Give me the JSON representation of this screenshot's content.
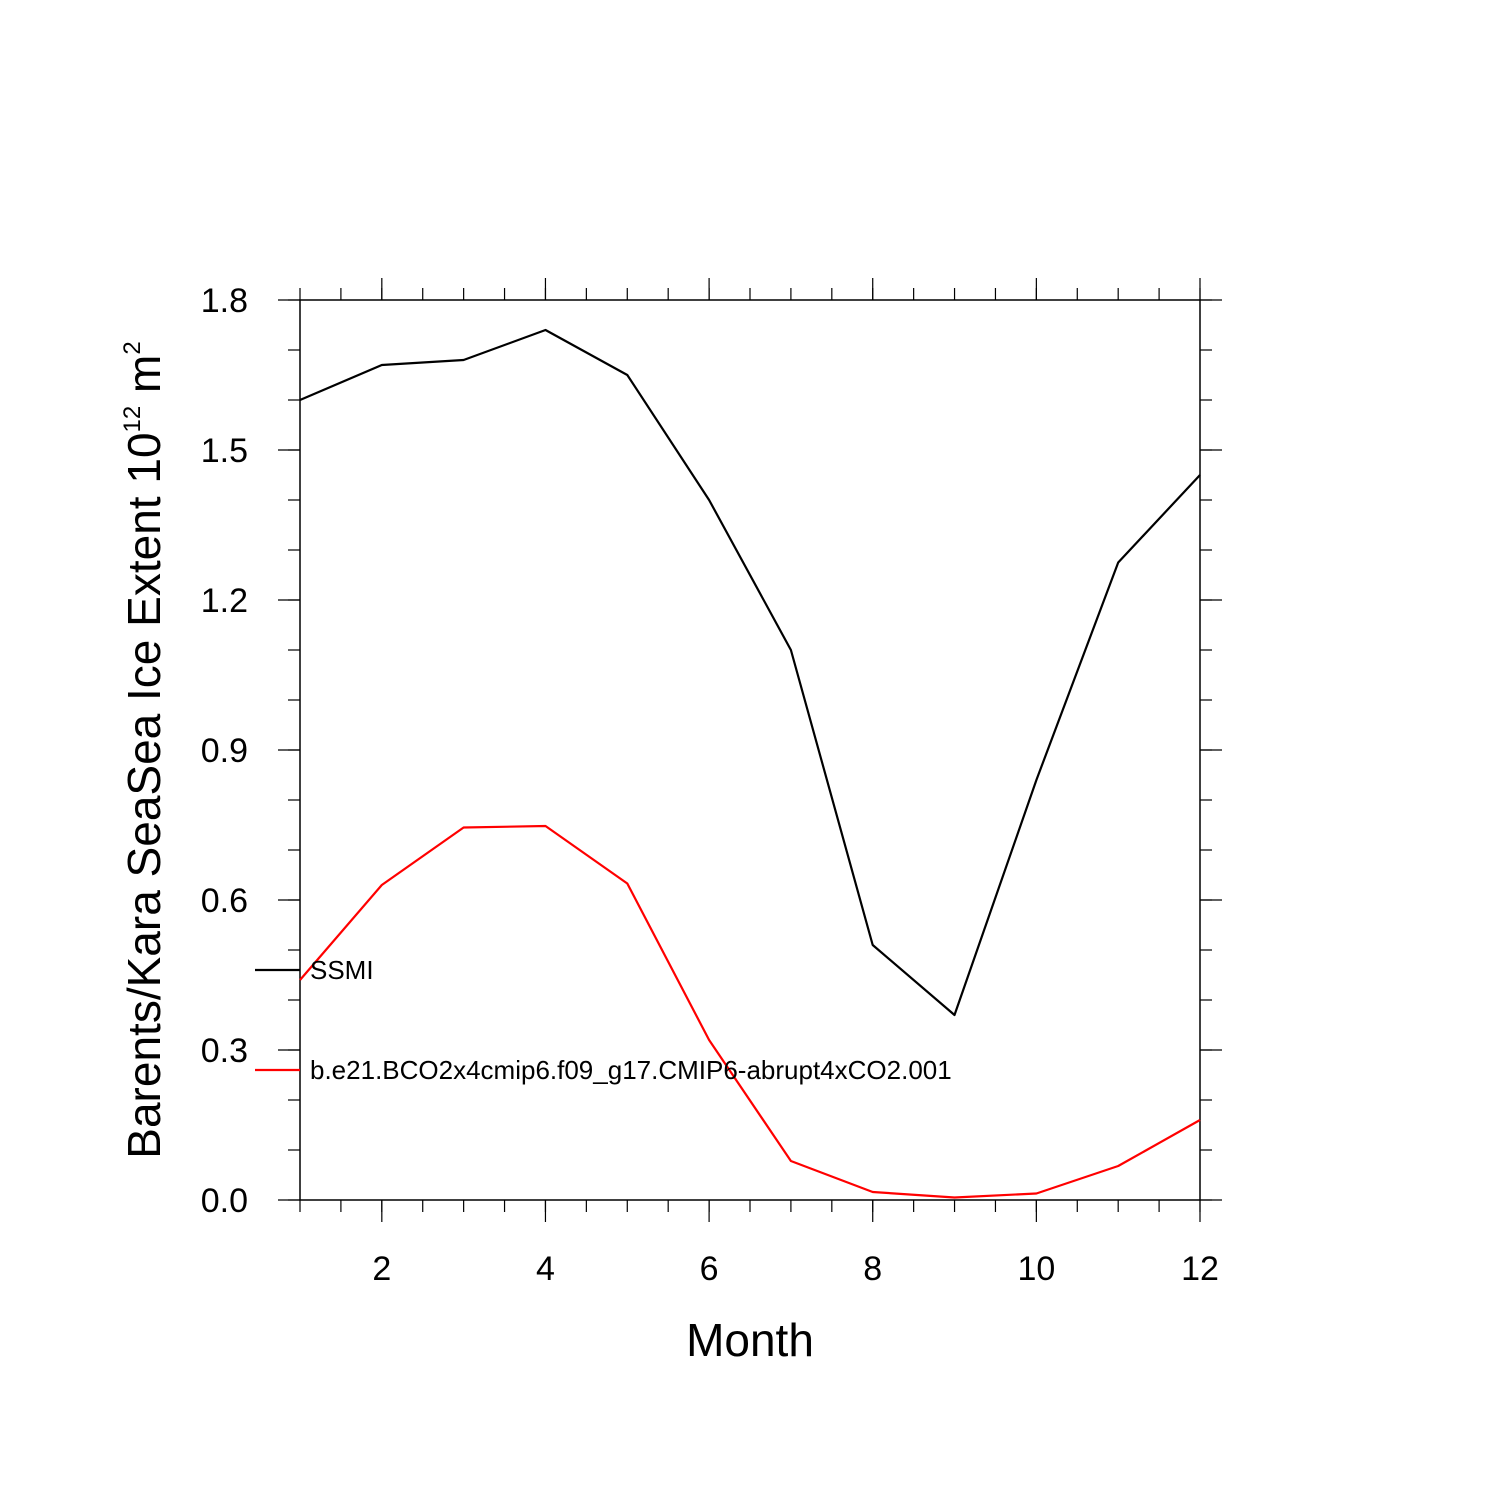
{
  "chart_data": {
    "type": "line",
    "xlabel": "Month",
    "ylabel_main": "Barents/Kara SeaSea Ice Extent 10",
    "ylabel_sup1": "12",
    "ylabel_unit": " m",
    "ylabel_sup2": "2",
    "xlim": [
      1,
      12
    ],
    "ylim": [
      0.0,
      1.8
    ],
    "x_ticks": [
      2,
      4,
      6,
      8,
      10,
      12
    ],
    "x_tick_labels": [
      "2",
      "4",
      "6",
      "8",
      "10",
      "12"
    ],
    "y_ticks": [
      0.0,
      0.3,
      0.6,
      0.9,
      1.2,
      1.5,
      1.8
    ],
    "y_tick_labels": [
      "0.0",
      "0.3",
      "0.6",
      "0.9",
      "1.2",
      "1.5",
      "1.8"
    ],
    "x": [
      1,
      2,
      3,
      4,
      5,
      6,
      7,
      8,
      9,
      10,
      11,
      12
    ],
    "series": [
      {
        "name": "SSMI",
        "color": "#000000",
        "values": [
          1.6,
          1.67,
          1.68,
          1.74,
          1.65,
          1.4,
          1.1,
          0.51,
          0.37,
          0.84,
          1.275,
          1.45
        ]
      },
      {
        "name": "b.e21.BCO2x4cmip6.f09_g17.CMIP6-abrupt4xCO2.001",
        "color": "#ff0000",
        "values": [
          0.44,
          0.63,
          0.745,
          0.748,
          0.633,
          0.32,
          0.078,
          0.016,
          0.005,
          0.013,
          0.068,
          0.16
        ]
      }
    ],
    "legend_placement": "inside-left",
    "grid": false
  }
}
